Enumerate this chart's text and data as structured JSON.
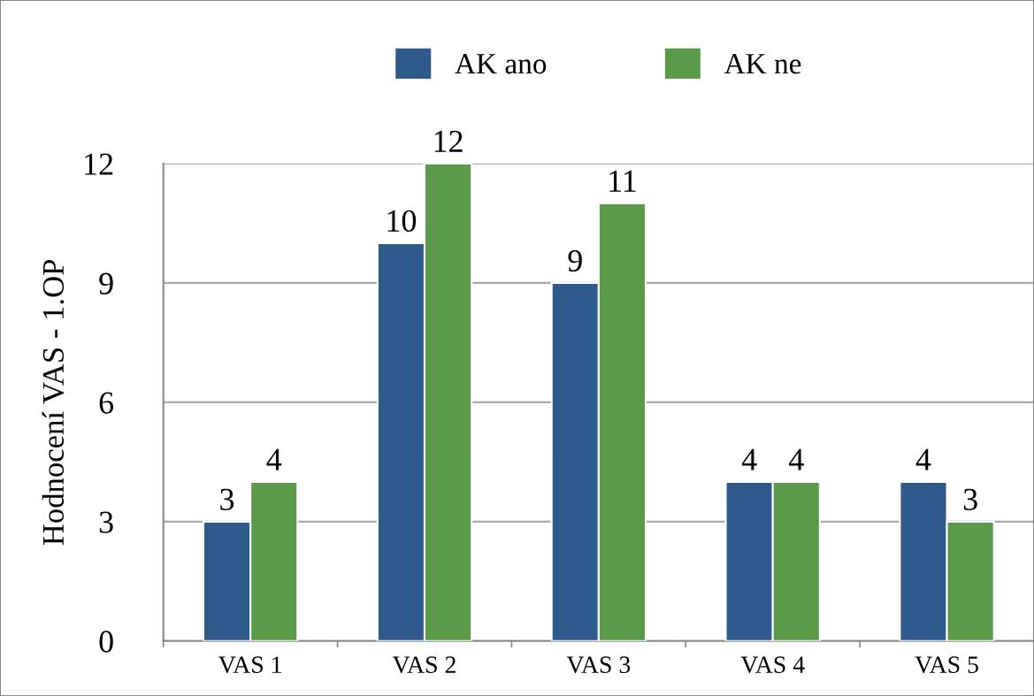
{
  "chart_data": {
    "type": "bar",
    "ylabel": "Hodnocení VAS - 1.OP",
    "categories": [
      "VAS 1",
      "VAS 2",
      "VAS 3",
      "VAS 4",
      "VAS 5"
    ],
    "series": [
      {
        "name": "AK ano",
        "color": "#2e5a8c",
        "values": [
          3,
          10,
          9,
          4,
          4
        ]
      },
      {
        "name": "AK ne",
        "color": "#5b9a48",
        "values": [
          4,
          12,
          11,
          4,
          3
        ]
      }
    ],
    "ylim": [
      0,
      12
    ],
    "yticks": [
      0,
      3,
      6,
      9,
      12
    ],
    "grid": "y",
    "legend": "top",
    "data_labels": true
  }
}
